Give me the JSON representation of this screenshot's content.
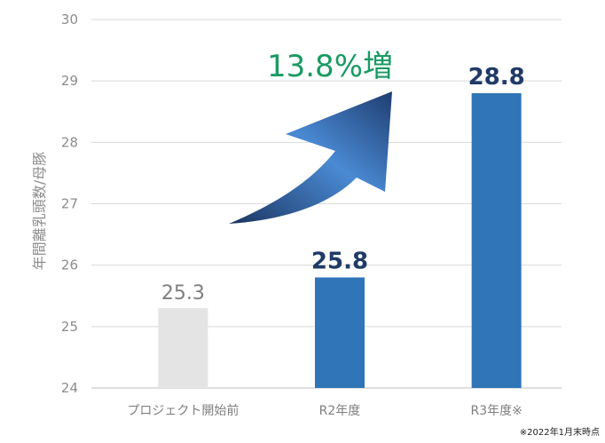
{
  "chart_data": {
    "type": "bar",
    "ylabel": "年間離乳頭数/母豚",
    "ylim": [
      24,
      30
    ],
    "yticks": [
      "24",
      "25",
      "26",
      "27",
      "28",
      "29",
      "30"
    ],
    "grid": true,
    "categories": [
      "プロジェクト開始前",
      "R2年度",
      "R3年度※"
    ],
    "values": [
      25.3,
      25.8,
      28.8
    ],
    "data_labels": [
      "25.3",
      "25.8",
      "28.8"
    ],
    "bar_colors": [
      "#e4e4e4",
      "#2f75b8",
      "#2f75b8"
    ],
    "label_colors": [
      "#7f7f7f",
      "#1f3a66",
      "#1f3a66"
    ],
    "annotation": {
      "text": "13.8%増",
      "color": "#1a9a63",
      "arrow_colors": [
        "#1b3561",
        "#4a8ad4",
        "#1f3d70"
      ]
    },
    "footnote": "※2022年1月末時点"
  }
}
